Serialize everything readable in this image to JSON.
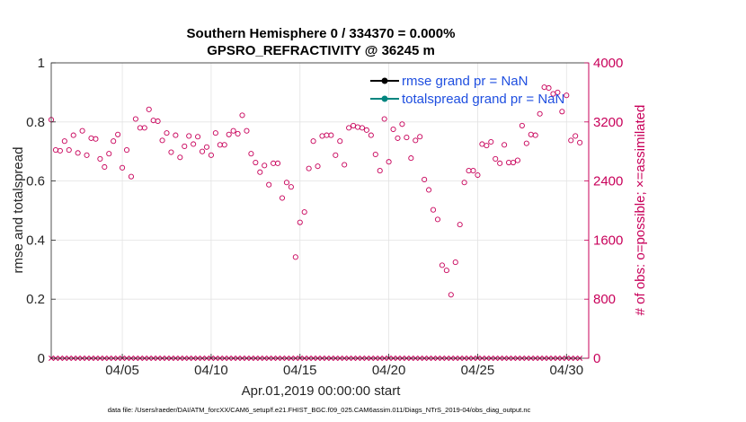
{
  "chart_data": {
    "type": "scatter",
    "title": "Southern Hemisphere 0 / 334370 = 0.000%",
    "subtitle": "GPSRO_REFRACTIVITY @ 36245 m",
    "xlabel": "Apr.01,2019 00:00:00 start",
    "ylabel_left": "rmse and totalspread",
    "ylabel_right": "# of obs: o=possible; ×=assimilated",
    "ylim_left": [
      0,
      1
    ],
    "ylim_right": [
      0,
      4000
    ],
    "xlim_days": [
      1.0,
      31.25
    ],
    "left_ticks": [
      "0",
      "0.2",
      "0.4",
      "0.6",
      "0.8",
      "1"
    ],
    "right_ticks": [
      "0",
      "800",
      "1600",
      "2400",
      "3200",
      "4000"
    ],
    "x_ticks": [
      {
        "day": 5,
        "label": "04/05"
      },
      {
        "day": 10,
        "label": "04/10"
      },
      {
        "day": 15,
        "label": "04/15"
      },
      {
        "day": 20,
        "label": "04/20"
      },
      {
        "day": 25,
        "label": "04/25"
      },
      {
        "day": 30,
        "label": "04/30"
      }
    ],
    "legend": [
      {
        "name": "rmse grand pr = NaN",
        "color": "#000000"
      },
      {
        "name": "totalspread grand pr = NaN",
        "color": "#00857f"
      }
    ],
    "possible_color": "#c8005a",
    "assimilated_color": "#c8005a",
    "possible_counts": [
      3230,
      2820,
      2810,
      2940,
      2820,
      3020,
      2780,
      3080,
      2750,
      2980,
      2970,
      2700,
      2590,
      2770,
      2940,
      3030,
      2580,
      2820,
      2460,
      3240,
      3120,
      3120,
      3370,
      3220,
      3210,
      2950,
      3050,
      2790,
      3020,
      2720,
      2870,
      3010,
      2900,
      3000,
      2800,
      2860,
      2750,
      3050,
      2890,
      2890,
      3030,
      3080,
      3040,
      3290,
      3080,
      2770,
      2650,
      2520,
      2610,
      2350,
      2640,
      2640,
      2170,
      2380,
      2320,
      1370,
      1840,
      1980,
      2570,
      2940,
      2600,
      3010,
      3020,
      3020,
      2750,
      2940,
      2620,
      3120,
      3150,
      3130,
      3120,
      3090,
      3020,
      2760,
      2540,
      3240,
      2660,
      3100,
      2980,
      3170,
      2990,
      2710,
      2950,
      3000,
      2420,
      2280,
      2010,
      1880,
      1260,
      1190,
      860,
      1300,
      1810,
      2380,
      2540,
      2540,
      2480,
      2900,
      2880,
      2930,
      2700,
      2640,
      2890,
      2650,
      2650,
      2680,
      3150,
      2910,
      3030,
      3020,
      3310,
      3670,
      3660,
      3580,
      3600,
      3340,
      3560,
      2950,
      3010,
      2920
    ],
    "assimilated_counts": [
      0,
      0,
      0,
      0,
      0,
      0,
      0,
      0,
      0,
      0,
      0,
      0,
      0,
      0,
      0,
      0,
      0,
      0,
      0,
      0,
      0,
      0,
      0,
      0,
      0,
      0,
      0,
      0,
      0,
      0,
      0,
      0,
      0,
      0,
      0,
      0,
      0,
      0,
      0,
      0,
      0,
      0,
      0,
      0,
      0,
      0,
      0,
      0,
      0,
      0,
      0,
      0,
      0,
      0,
      0,
      0,
      0,
      0,
      0,
      0,
      0,
      0,
      0,
      0,
      0,
      0,
      0,
      0,
      0,
      0,
      0,
      0,
      0,
      0,
      0,
      0,
      0,
      0,
      0,
      0,
      0,
      0,
      0,
      0,
      0,
      0,
      0,
      0,
      0,
      0,
      0,
      0,
      0,
      0,
      0,
      0,
      0,
      0,
      0,
      0,
      0,
      0,
      0,
      0,
      0,
      0,
      0,
      0,
      0,
      0,
      0,
      0,
      0,
      0,
      0,
      0,
      0,
      0,
      0,
      0
    ],
    "footer": "data file: /Users/raeder/DAI/ATM_forcXX/CAM6_setup/f.e21.FHIST_BGC.f09_025.CAM6assim.011/Diags_NTrS_2019-04/obs_diag_output.nc"
  }
}
